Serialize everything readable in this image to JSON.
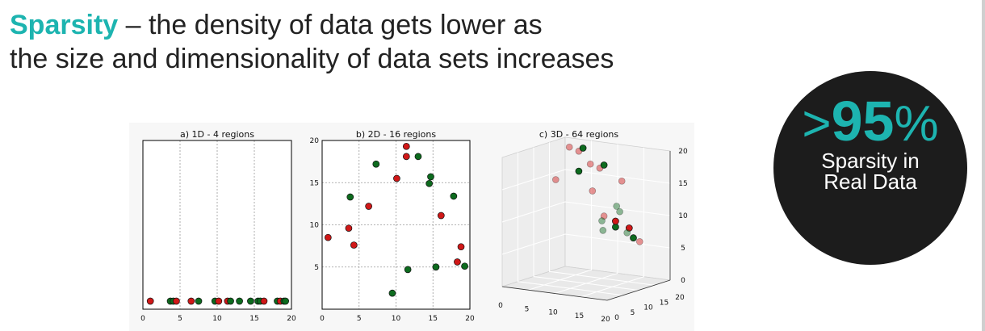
{
  "headline": {
    "keyword": "Sparsity",
    "line1_rest": " – the density of data gets lower as",
    "line2": "the size and dimensionality of data sets increases"
  },
  "badge": {
    "gt": ">",
    "value": "95",
    "percent": "%",
    "caption_line1": "Sparsity in",
    "caption_line2": "Real Data"
  },
  "colors": {
    "accent": "#1db4b0",
    "red": "#d01818",
    "green": "#0d6b1e",
    "badge_bg": "#1c1c1c"
  },
  "chart_data": [
    {
      "type": "scatter",
      "title": "a) 1D - 4 regions",
      "xlim": [
        0,
        20
      ],
      "xticks": [
        "0",
        "5",
        "10",
        "15",
        "20"
      ],
      "grid_x": [
        5,
        10,
        15
      ],
      "points": [
        {
          "x": 1.0,
          "c": "red"
        },
        {
          "x": 3.7,
          "c": "green"
        },
        {
          "x": 4.1,
          "c": "green"
        },
        {
          "x": 4.5,
          "c": "red"
        },
        {
          "x": 6.5,
          "c": "red"
        },
        {
          "x": 7.5,
          "c": "green"
        },
        {
          "x": 9.7,
          "c": "green"
        },
        {
          "x": 10.2,
          "c": "red"
        },
        {
          "x": 11.4,
          "c": "red"
        },
        {
          "x": 11.8,
          "c": "green"
        },
        {
          "x": 13.0,
          "c": "green"
        },
        {
          "x": 14.5,
          "c": "green"
        },
        {
          "x": 15.5,
          "c": "green"
        },
        {
          "x": 15.8,
          "c": "green"
        },
        {
          "x": 16.3,
          "c": "red"
        },
        {
          "x": 18.1,
          "c": "green"
        },
        {
          "x": 18.5,
          "c": "red"
        },
        {
          "x": 19.0,
          "c": "green"
        },
        {
          "x": 19.2,
          "c": "green"
        }
      ]
    },
    {
      "type": "scatter",
      "title": "b) 2D - 16 regions",
      "xlim": [
        0,
        20
      ],
      "ylim": [
        0,
        20
      ],
      "xticks": [
        "0",
        "5",
        "10",
        "15",
        "20"
      ],
      "yticks": [
        "5",
        "10",
        "15",
        "20"
      ],
      "grid": [
        5,
        10,
        15
      ],
      "points": [
        {
          "x": 0.8,
          "y": 8.5,
          "c": "red"
        },
        {
          "x": 3.6,
          "y": 9.6,
          "c": "red"
        },
        {
          "x": 4.3,
          "y": 7.6,
          "c": "red"
        },
        {
          "x": 3.8,
          "y": 13.3,
          "c": "green"
        },
        {
          "x": 7.3,
          "y": 17.2,
          "c": "green"
        },
        {
          "x": 6.3,
          "y": 12.2,
          "c": "red"
        },
        {
          "x": 9.5,
          "y": 1.9,
          "c": "green"
        },
        {
          "x": 10.1,
          "y": 15.5,
          "c": "red"
        },
        {
          "x": 11.4,
          "y": 19.3,
          "c": "red"
        },
        {
          "x": 11.4,
          "y": 18.1,
          "c": "red"
        },
        {
          "x": 11.6,
          "y": 4.7,
          "c": "green"
        },
        {
          "x": 13.0,
          "y": 18.1,
          "c": "green"
        },
        {
          "x": 14.5,
          "y": 14.9,
          "c": "green"
        },
        {
          "x": 14.7,
          "y": 15.7,
          "c": "green"
        },
        {
          "x": 15.4,
          "y": 5.0,
          "c": "green"
        },
        {
          "x": 16.1,
          "y": 11.1,
          "c": "red"
        },
        {
          "x": 17.8,
          "y": 13.4,
          "c": "green"
        },
        {
          "x": 18.3,
          "y": 5.6,
          "c": "red"
        },
        {
          "x": 18.8,
          "y": 7.4,
          "c": "red"
        },
        {
          "x": 19.3,
          "y": 5.1,
          "c": "green"
        }
      ]
    },
    {
      "type": "scatter",
      "title": "c) 3D - 64 regions",
      "xlim": [
        0,
        20
      ],
      "ylim": [
        0,
        20
      ],
      "zlim": [
        0,
        20
      ],
      "xticks": [
        "0",
        "5",
        "10",
        "15",
        "20"
      ],
      "yticks": [
        "0",
        "5",
        "10",
        "15",
        "20"
      ],
      "zticks": [
        "0",
        "5",
        "10",
        "15",
        "20"
      ],
      "points": [
        {
          "x": 2,
          "y": 18,
          "z": 19,
          "c": "red",
          "faded": true
        },
        {
          "x": 5,
          "y": 16,
          "z": 19,
          "c": "red",
          "faded": true
        },
        {
          "x": 7,
          "y": 14,
          "z": 20,
          "c": "green",
          "faded": false
        },
        {
          "x": 3,
          "y": 12,
          "z": 15,
          "c": "red",
          "faded": true
        },
        {
          "x": 8,
          "y": 11,
          "z": 17,
          "c": "green",
          "faded": false
        },
        {
          "x": 12,
          "y": 8,
          "z": 19,
          "c": "red",
          "faded": true
        },
        {
          "x": 15,
          "y": 6,
          "z": 19,
          "c": "red",
          "faded": true
        },
        {
          "x": 17,
          "y": 4,
          "z": 20,
          "c": "green",
          "faded": false
        },
        {
          "x": 10,
          "y": 12,
          "z": 14,
          "c": "red",
          "faded": true
        },
        {
          "x": 14,
          "y": 9,
          "z": 11,
          "c": "red",
          "faded": true
        },
        {
          "x": 13,
          "y": 10,
          "z": 10,
          "c": "green",
          "faded": true
        },
        {
          "x": 9,
          "y": 17,
          "z": 7,
          "c": "green",
          "faded": true
        },
        {
          "x": 12,
          "y": 16,
          "z": 8,
          "c": "green",
          "faded": false
        },
        {
          "x": 15,
          "y": 11,
          "z": 10,
          "c": "red",
          "faded": false
        },
        {
          "x": 17,
          "y": 9,
          "z": 12,
          "c": "green",
          "faded": true
        },
        {
          "x": 17,
          "y": 8,
          "z": 13,
          "c": "green",
          "faded": true
        },
        {
          "x": 18,
          "y": 8,
          "z": 17,
          "c": "red",
          "faded": true
        },
        {
          "x": 17,
          "y": 12,
          "z": 9,
          "c": "red",
          "faded": false
        },
        {
          "x": 16,
          "y": 13,
          "z": 8,
          "c": "green",
          "faded": true
        },
        {
          "x": 19,
          "y": 10,
          "z": 8,
          "c": "green",
          "faded": false
        },
        {
          "x": 16,
          "y": 17,
          "z": 6,
          "c": "red",
          "faded": true
        }
      ]
    }
  ]
}
